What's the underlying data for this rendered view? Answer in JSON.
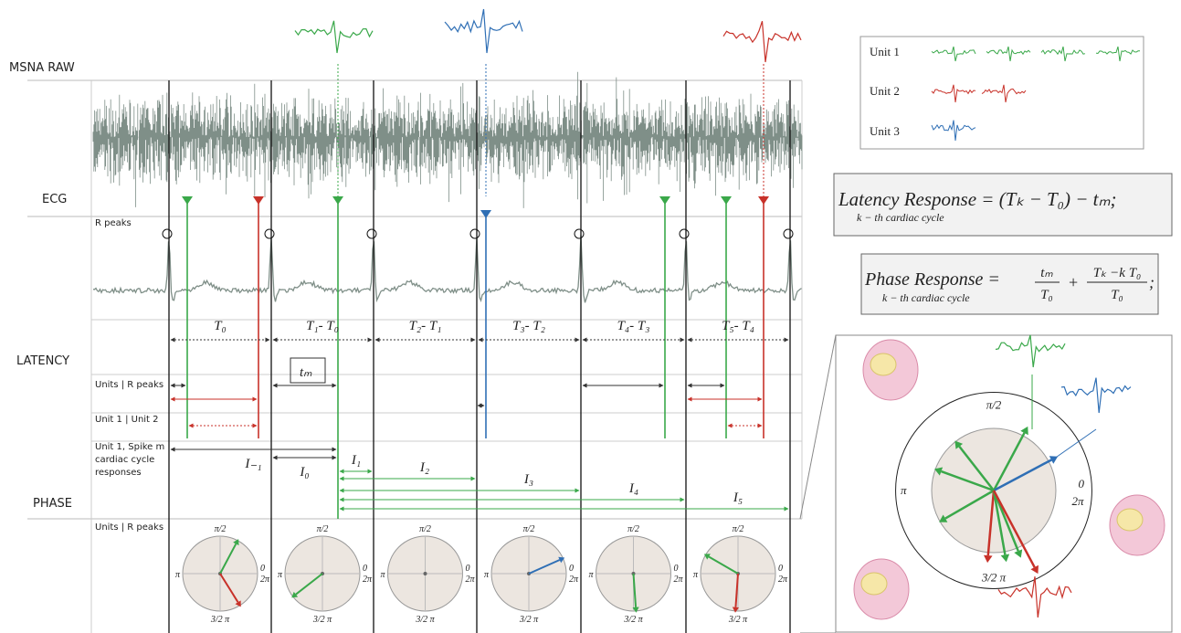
{
  "rows": {
    "msna": "MSNA RAW",
    "ecg": "ECG",
    "latency": "LATENCY",
    "phase": "PHASE"
  },
  "sublabels": {
    "r_peaks": "R peaks",
    "units_r_peaks": "Units | R peaks",
    "unit1_unit2": "Unit 1 | Unit 2",
    "spike": [
      "Unit 1, Spike m",
      "cardiac cycle",
      "responses"
    ],
    "phase_units": "Units | R peaks"
  },
  "intervals": [
    "T₀",
    "T₁- T₀",
    "T₂- T₁",
    "T₃- T₂",
    "T₄- T₃",
    "T₅- T₄"
  ],
  "tm": "tₘ",
  "cycle_labels": [
    "I₋₁",
    "I₀",
    "I₁",
    "I₂",
    "I₃",
    "I₄",
    "I₅"
  ],
  "legend": [
    "Unit 1",
    "Unit 2",
    "Unit 3"
  ],
  "latency_formula": {
    "main": "Latency Response = (Tₖ − T₀) − tₘ;",
    "sub": "k − th cardiac cycle"
  },
  "phase_formula": {
    "lhs": "Phase Response =",
    "sub": "k − th cardiac cycle",
    "frac1_num": "tₘ",
    "frac1_den": "T₀",
    "plus": "+",
    "frac2_num": "Tₖ −k T₀",
    "frac2_den": "T₀",
    "end": ";"
  },
  "polar": {
    "top": "π/2",
    "left": "π",
    "right_0": "0",
    "right_2pi": "2π",
    "bottom": "3/2 π"
  }
}
